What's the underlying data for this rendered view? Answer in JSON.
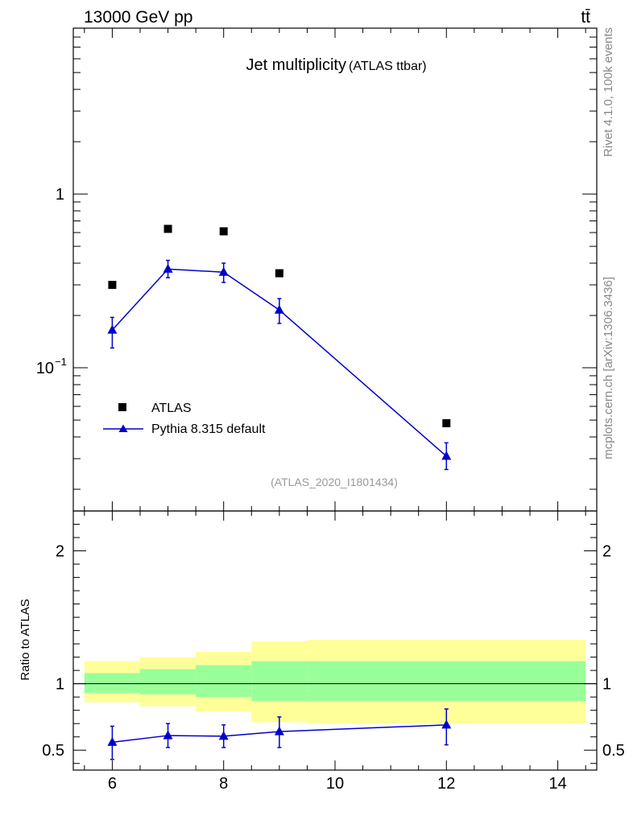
{
  "header": {
    "energy_label": "13000 GeV pp",
    "process_label": "tt̄"
  },
  "side": {
    "rivet_label": "Rivet 4.1.0,  100k events",
    "source_label": "mcplots.cern.ch [arXiv:1306.3436]"
  },
  "chart_data": {
    "type": "scatter",
    "title": "Jet multiplicity",
    "subtitle": "(ATLAS ttbar)",
    "analysis_id": "(ATLAS_2020_I1801434)",
    "xlim": [
      5.3,
      14.7
    ],
    "x_ticks": [
      6,
      8,
      10,
      12,
      14
    ],
    "x_tick_labels": [
      "6",
      "8",
      "10",
      "12",
      "14"
    ],
    "main": {
      "yscale": "log",
      "ylim": [
        0.015,
        9.0
      ],
      "y_tick_labels": [
        {
          "value": 1,
          "label": "1"
        },
        {
          "value": 0.1,
          "label": "10",
          "exp": "−1"
        }
      ],
      "legend_position": "lower-left",
      "series": [
        {
          "name": "ATLAS",
          "marker": "square",
          "color": "#000000",
          "x": [
            6,
            7,
            8,
            9,
            12
          ],
          "y": [
            0.3,
            0.63,
            0.61,
            0.35,
            0.048
          ]
        },
        {
          "name": "Pythia 8.315 default",
          "marker": "triangle",
          "line": true,
          "color": "#0000cc",
          "x": [
            6,
            7,
            8,
            9,
            12
          ],
          "y": [
            0.165,
            0.37,
            0.355,
            0.215,
            0.031
          ],
          "yerr_low": [
            0.13,
            0.33,
            0.31,
            0.18,
            0.026
          ],
          "yerr_high": [
            0.195,
            0.415,
            0.4,
            0.25,
            0.037
          ]
        }
      ]
    },
    "ratio": {
      "ylabel": "Ratio to ATLAS",
      "ylim": [
        0.35,
        2.3
      ],
      "y_tick_labels": [
        {
          "value": 0.5,
          "label": "0.5"
        },
        {
          "value": 1,
          "label": "1"
        },
        {
          "value": 2,
          "label": "2"
        }
      ],
      "reference_line": 1,
      "bands": {
        "outer_color": "#ffff99",
        "inner_color": "#99ff99",
        "bins": [
          {
            "xlo": 5.5,
            "xhi": 6.5,
            "outer": [
              0.86,
              1.17
            ],
            "inner": [
              0.93,
              1.08
            ]
          },
          {
            "xlo": 6.5,
            "xhi": 7.5,
            "outer": [
              0.83,
              1.2
            ],
            "inner": [
              0.92,
              1.11
            ]
          },
          {
            "xlo": 7.5,
            "xhi": 8.5,
            "outer": [
              0.79,
              1.24
            ],
            "inner": [
              0.9,
              1.14
            ]
          },
          {
            "xlo": 8.5,
            "xhi": 9.5,
            "outer": [
              0.71,
              1.32
            ],
            "inner": [
              0.87,
              1.17
            ]
          },
          {
            "xlo": 9.5,
            "xhi": 14.5,
            "outer": [
              0.7,
              1.33
            ],
            "inner": [
              0.87,
              1.17
            ]
          }
        ]
      },
      "series": [
        {
          "name": "Pythia 8.315 default",
          "color": "#0000cc",
          "x": [
            6,
            7,
            8,
            9,
            12
          ],
          "y": [
            0.56,
            0.61,
            0.605,
            0.64,
            0.69
          ],
          "yerr_low": [
            0.43,
            0.52,
            0.52,
            0.52,
            0.54
          ],
          "yerr_high": [
            0.68,
            0.7,
            0.69,
            0.75,
            0.81
          ]
        }
      ]
    }
  }
}
